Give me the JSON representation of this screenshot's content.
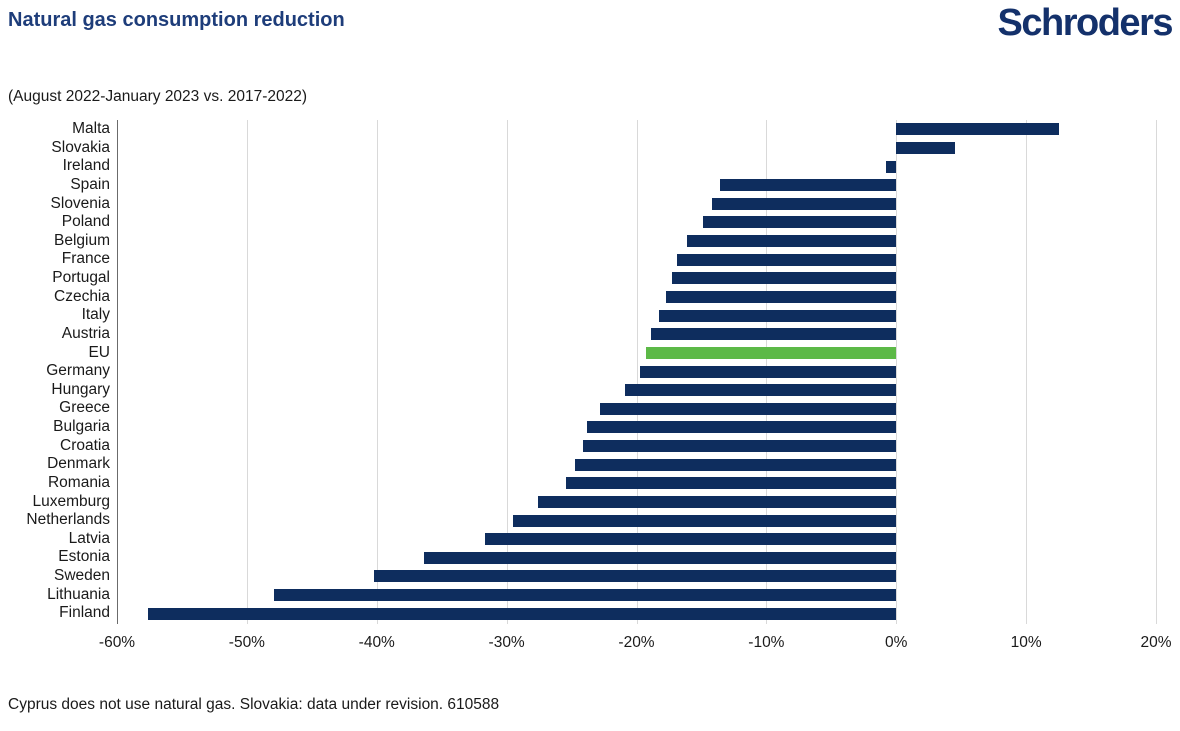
{
  "header": {
    "title": "Natural gas consumption reduction",
    "subtitle": "(August 2022-January 2023 vs. 2017-2022)",
    "logo_text": "Schroders"
  },
  "footnote": "Cyprus does not use natural gas. Slovakia: data under revision. 610588",
  "chart_data": {
    "type": "bar",
    "orientation": "horizontal",
    "title": "Natural gas consumption reduction",
    "subtitle": "(August 2022-January 2023 vs. 2017-2022)",
    "xlabel": "",
    "ylabel": "",
    "unit": "%",
    "xlim": [
      -60,
      20
    ],
    "grid": "vertical",
    "legend": "none",
    "categories": [
      "Malta",
      "Slovakia",
      "Ireland",
      "Spain",
      "Slovenia",
      "Poland",
      "Belgium",
      "France",
      "Portugal",
      "Czechia",
      "Italy",
      "Austria",
      "EU",
      "Germany",
      "Hungary",
      "Greece",
      "Bulgaria",
      "Croatia",
      "Denmark",
      "Romania",
      "Luxemburg",
      "Netherlands",
      "Latvia",
      "Estonia",
      "Sweden",
      "Lithuania",
      "Finland"
    ],
    "values": [
      12.5,
      4.5,
      -0.8,
      -13.6,
      -14.2,
      -14.9,
      -16.1,
      -16.9,
      -17.3,
      -17.7,
      -18.3,
      -18.9,
      -19.3,
      -19.7,
      -20.9,
      -22.8,
      -23.8,
      -24.1,
      -24.7,
      -25.4,
      -27.6,
      -29.5,
      -31.7,
      -36.4,
      -40.2,
      -47.9,
      -57.6
    ],
    "highlight_category": "EU",
    "ticks": [
      {
        "value": -60,
        "label": "-60%"
      },
      {
        "value": -50,
        "label": "-50%"
      },
      {
        "value": -40,
        "label": "-40%"
      },
      {
        "value": -30,
        "label": "-30%"
      },
      {
        "value": -20,
        "label": "-20%"
      },
      {
        "value": -10,
        "label": "-10%"
      },
      {
        "value": 0,
        "label": "0%"
      },
      {
        "value": 10,
        "label": "10%"
      },
      {
        "value": 20,
        "label": "20%"
      }
    ],
    "colors": {
      "bar": "#0e2d5e",
      "highlight": "#5cb947",
      "gridline": "#d9d9d9",
      "axis_line": "#6b6b6b",
      "title": "#1e3d7a",
      "logo": "#14316b"
    }
  }
}
